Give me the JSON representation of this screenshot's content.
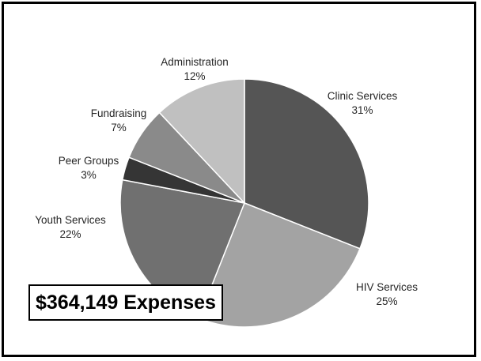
{
  "total_label": "$364,149 Expenses",
  "chart_data": {
    "type": "pie",
    "title": "",
    "slices": [
      {
        "name": "Clinic Services",
        "value": 31,
        "label": "31%",
        "color": "#555555"
      },
      {
        "name": "HIV Services",
        "value": 25,
        "label": "25%",
        "color": "#a3a3a3"
      },
      {
        "name": "Youth Services",
        "value": 22,
        "label": "22%",
        "color": "#707070"
      },
      {
        "name": "Peer Groups",
        "value": 3,
        "label": "3%",
        "color": "#353535"
      },
      {
        "name": "Fundraising",
        "value": 7,
        "label": "7%",
        "color": "#8a8a8a"
      },
      {
        "name": "Administration",
        "value": 12,
        "label": "12%",
        "color": "#c0c0c0"
      }
    ],
    "start_angle": "12 o'clock",
    "direction": "clockwise",
    "legend": "none",
    "labels": "outside"
  }
}
